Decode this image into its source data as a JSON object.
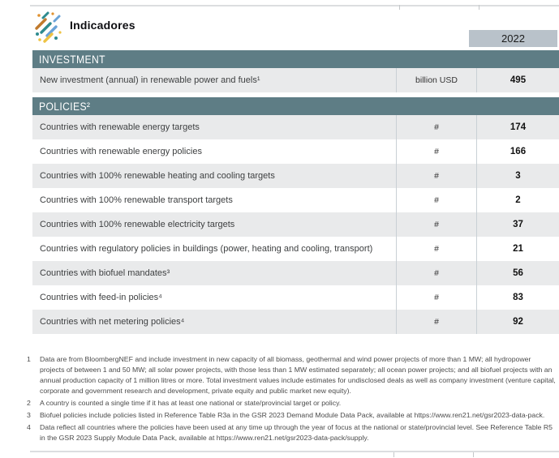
{
  "page": {
    "title": "Indicadores",
    "year": "2022"
  },
  "colors": {
    "section_header_bg": "#5e7d85",
    "year_box_bg": "#b9c2ca",
    "row_alt_bg": "#e9eaeb",
    "column_divider": "#c9d0d5"
  },
  "icon": {
    "name": "indicators-logo-icon",
    "palette": [
      "#2e8b8f",
      "#cd7f32",
      "#6aa3d8",
      "#eec344",
      "#e0912f"
    ]
  },
  "table": {
    "year_column_header": "2022",
    "sections": [
      {
        "header": "INVESTMENT",
        "rows": [
          {
            "label": "New investment (annual) in renewable power and fuels¹",
            "unit": "billion USD",
            "value": "495"
          }
        ]
      },
      {
        "header": "POLICIES²",
        "rows": [
          {
            "label": "Countries with renewable energy targets",
            "unit": "#",
            "value": "174"
          },
          {
            "label": "Countries with renewable energy policies",
            "unit": "#",
            "value": "166"
          },
          {
            "label": "Countries with 100% renewable heating and cooling targets",
            "unit": "#",
            "value": "3"
          },
          {
            "label": "Countries with 100% renewable transport targets",
            "unit": "#",
            "value": "2"
          },
          {
            "label": "Countries with 100% renewable electricity targets",
            "unit": "#",
            "value": "37"
          },
          {
            "label": "Countries with regulatory policies in buildings (power, heating and cooling, transport)",
            "unit": "#",
            "value": "21"
          },
          {
            "label": "Countries with biofuel mandates³",
            "unit": "#",
            "value": "56"
          },
          {
            "label": "Countries with feed-in policies⁴",
            "unit": "#",
            "value": "83"
          },
          {
            "label": "Countries with net metering policies⁴",
            "unit": "#",
            "value": "92"
          }
        ]
      }
    ]
  },
  "footnotes": [
    {
      "num": "1",
      "text": "Data are from BloombergNEF and include investment in new capacity of all biomass, geothermal and wind power projects of more than 1 MW; all hydropower projects of between 1 and 50 MW; all solar power projects, with those less than 1 MW estimated separately; all ocean power projects; and all biofuel projects with an annual production capacity of 1 million litres or more. Total investment values include estimates for undisclosed deals as well as company investment (venture capital, corporate and government research and development, private equity and public market new equity)."
    },
    {
      "num": "2",
      "text": "A country is counted a single time if it has at least one national or state/provincial target or policy."
    },
    {
      "num": "3",
      "text": "Biofuel policies include policies listed in Reference Table R3a in the GSR 2023 Demand Module Data Pack, available at https://www.ren21.net/gsr2023-data-pack."
    },
    {
      "num": "4",
      "text": "Data reflect all countries where the policies have been used at any time up through the year of focus at the national or state/provincial level. See Reference Table R5 in the GSR 2023 Supply Module Data Pack, available at https://www.ren21.net/gsr2023-data-pack/supply."
    }
  ]
}
